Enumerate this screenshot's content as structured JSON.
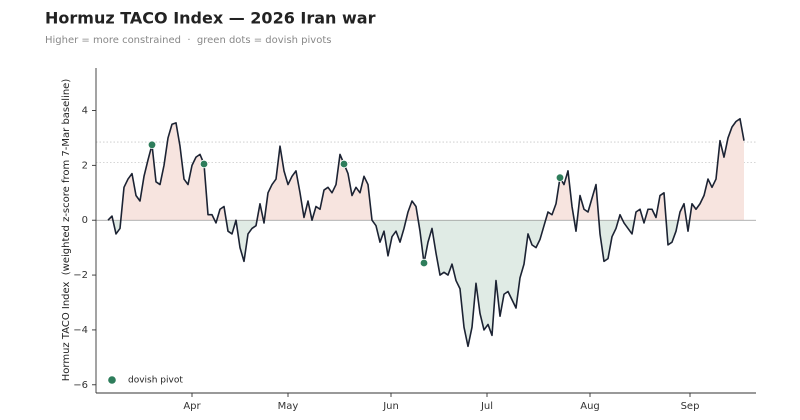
{
  "chart_data": {
    "type": "line",
    "title": "Hormuz TACO Index — 2026 Iran war",
    "subtitle": "Higher = more constrained  ·  green dots = dovish pivots",
    "y_label": "Hormuz TACO Index  (weighted z-score from 7-Mar baseline)",
    "xlim": [
      -3,
      162
    ],
    "xticks": [
      {
        "value": 21,
        "label": "Apr"
      },
      {
        "value": 45,
        "label": "May"
      },
      {
        "value": 70.75,
        "label": "Jun"
      },
      {
        "value": 94.75,
        "label": "Jul"
      },
      {
        "value": 120.5,
        "label": "Aug"
      },
      {
        "value": 145.5,
        "label": "Sep"
      }
    ],
    "ylim": [
      -6.3,
      5.55
    ],
    "yticks": [
      {
        "value": -6,
        "label": "−6"
      },
      {
        "value": -4,
        "label": "−4"
      },
      {
        "value": -2,
        "label": "−2"
      },
      0,
      2,
      4
    ],
    "reference_lines": [
      2.85,
      2.1
    ],
    "legend_position": "lower left",
    "positive_fill": "#f7e4df",
    "negative_fill": "#e0ebe5",
    "series": [
      {
        "color": "#1c2333",
        "values": [
          0.0,
          0.15,
          -0.5,
          -0.3,
          1.2,
          1.5,
          1.7,
          0.9,
          0.7,
          1.6,
          2.2,
          2.75,
          1.4,
          1.3,
          2.0,
          3.0,
          3.5,
          3.55,
          2.7,
          1.5,
          1.3,
          2.0,
          2.3,
          2.4,
          2.05,
          0.2,
          0.2,
          -0.1,
          0.4,
          0.5,
          -0.4,
          -0.5,
          0.0,
          -1.0,
          -1.5,
          -0.5,
          -0.3,
          -0.2,
          0.6,
          -0.1,
          1.0,
          1.3,
          1.5,
          2.7,
          1.8,
          1.3,
          1.6,
          1.8,
          1.0,
          0.1,
          0.7,
          0.0,
          0.5,
          0.4,
          1.1,
          1.2,
          1.0,
          1.3,
          2.4,
          2.05,
          1.7,
          0.9,
          1.2,
          1.0,
          1.6,
          1.3,
          0.0,
          -0.2,
          -0.8,
          -0.4,
          -1.3,
          -0.6,
          -0.4,
          -0.8,
          -0.3,
          0.3,
          0.7,
          0.5,
          -0.4,
          -1.56,
          -0.8,
          -0.3,
          -1.2,
          -2.0,
          -1.9,
          -2.0,
          -1.6,
          -2.2,
          -2.5,
          -3.9,
          -4.6,
          -3.9,
          -2.3,
          -3.4,
          -4.0,
          -3.8,
          -4.2,
          -2.2,
          -3.5,
          -2.7,
          -2.6,
          -2.9,
          -3.2,
          -2.1,
          -1.6,
          -0.5,
          -0.9,
          -1.0,
          -0.7,
          -0.2,
          0.3,
          0.2,
          0.6,
          1.55,
          1.3,
          1.8,
          0.5,
          -0.4,
          0.9,
          0.4,
          0.3,
          0.8,
          1.3,
          -0.5,
          -1.5,
          -1.4,
          -0.6,
          -0.3,
          0.2,
          -0.1,
          -0.3,
          -0.5,
          0.3,
          0.4,
          -0.1,
          0.4,
          0.4,
          0.1,
          0.9,
          1.0,
          -0.9,
          -0.8,
          -0.4,
          0.3,
          0.6,
          -0.4,
          0.6,
          0.4,
          0.6,
          0.9,
          1.5,
          1.2,
          1.5,
          2.9,
          2.3,
          3.0,
          3.4,
          3.6,
          3.7,
          2.9
        ]
      },
      {
        "name": "dovish pivot",
        "type": "scatter",
        "color": "#2e7d5b",
        "x": [
          11,
          24,
          59,
          79,
          113
        ],
        "values": [
          2.75,
          2.05,
          2.05,
          -1.56,
          1.55
        ]
      }
    ]
  }
}
